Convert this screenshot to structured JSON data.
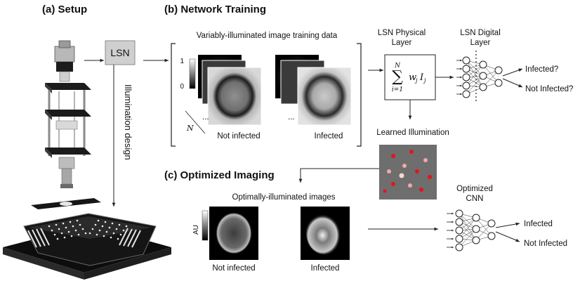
{
  "panels": {
    "setup": {
      "title": "(a) Setup",
      "lsn_box": "LSN",
      "illumination_design": "Illumination design"
    },
    "training": {
      "title": "(b) Network Training",
      "data_caption": "Variably-illuminated image training data",
      "colorbar_max": "1",
      "colorbar_min": "0",
      "stack_dots": "...",
      "n_label": "N",
      "stack_label_left": "Not infected",
      "stack_label_right": "Infected",
      "physical_layer_label": "LSN Physical Layer",
      "physical_layer_line1": "LSN Physical",
      "physical_layer_line2": "Layer",
      "digital_layer_line1": "LSN Digital",
      "digital_layer_line2": "Layer",
      "sum_upper": "N",
      "sum_lower": "i=1",
      "sum_body": "w",
      "sum_sub_j": "j",
      "sum_I": "I",
      "output_1": "Infected?",
      "output_2": "Not Infected?",
      "learned_illumination": "Learned Illumination"
    },
    "imaging": {
      "title": "(c) Optimized Imaging",
      "caption": "Optimally-illuminated images",
      "au_label": "AU",
      "image_label_left": "Not infected",
      "image_label_right": "Infected",
      "cnn_line1": "Optimized",
      "cnn_line2": "CNN",
      "output_1": "Infected",
      "output_2": "Not Infected"
    }
  },
  "colors": {
    "led_background": "#6e6e6e",
    "led_bright": "#e4141b",
    "led_dim": "#f2a9a6",
    "led_pale": "#f3d9cf",
    "lsn_box_fill": "#cfcfcf"
  }
}
